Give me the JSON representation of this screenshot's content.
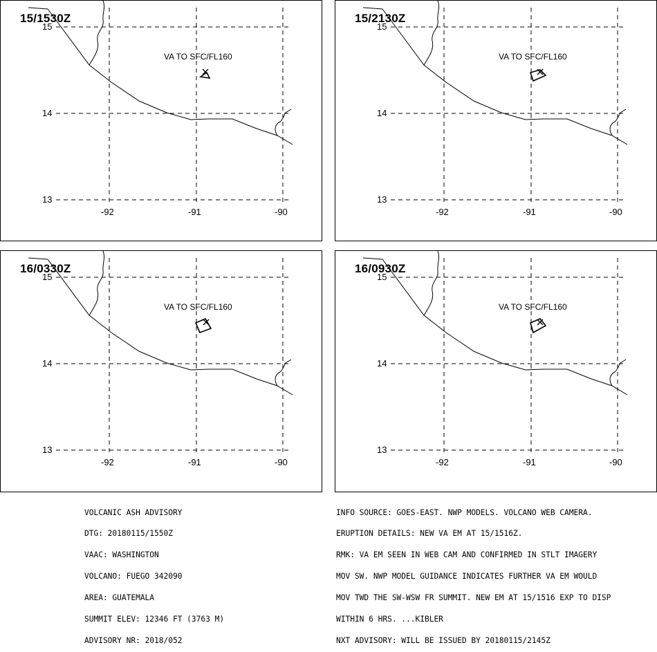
{
  "panels": [
    {
      "time": "15/1530Z",
      "ash_label": "VA TO SFC/FL160"
    },
    {
      "time": "15/2130Z",
      "ash_label": "VA TO SFC/FL160"
    },
    {
      "time": "16/0330Z",
      "ash_label": "VA TO SFC/FL160"
    },
    {
      "time": "16/0930Z",
      "ash_label": "VA TO SFC/FL160"
    }
  ],
  "map": {
    "lat_labels": [
      "15",
      "14",
      "13"
    ],
    "lon_labels": [
      "-92",
      "-91",
      "-90"
    ]
  },
  "advisory_left": [
    "VOLCANIC ASH ADVISORY",
    "DTG: 20180115/1550Z",
    "VAAC: WASHINGTON",
    "VOLCANO: FUEGO 342090",
    "AREA: GUATEMALA",
    "SUMMIT ELEV: 12346 FT (3763 M)",
    "ADVISORY NR: 2018/052"
  ],
  "advisory_right": [
    "INFO SOURCE: GOES-EAST. NWP MODELS. VOLCANO WEB CAMERA.",
    "ERUPTION DETAILS: NEW VA EM AT 15/1516Z.",
    "RMK: VA EM SEEN IN WEB CAM AND CONFIRMED IN STLT IMAGERY",
    "MOV SW. NWP MODEL GUIDANCE INDICATES FURTHER VA EM WOULD",
    "MOV TWD THE SW-WSW FR SUMMIT. NEW EM AT 15/1516 EXP TO DISP",
    "WITHIN 6 HRS. ...KIBLER",
    "NXT ADVISORY: WILL BE ISSUED BY 20180115/2145Z"
  ]
}
